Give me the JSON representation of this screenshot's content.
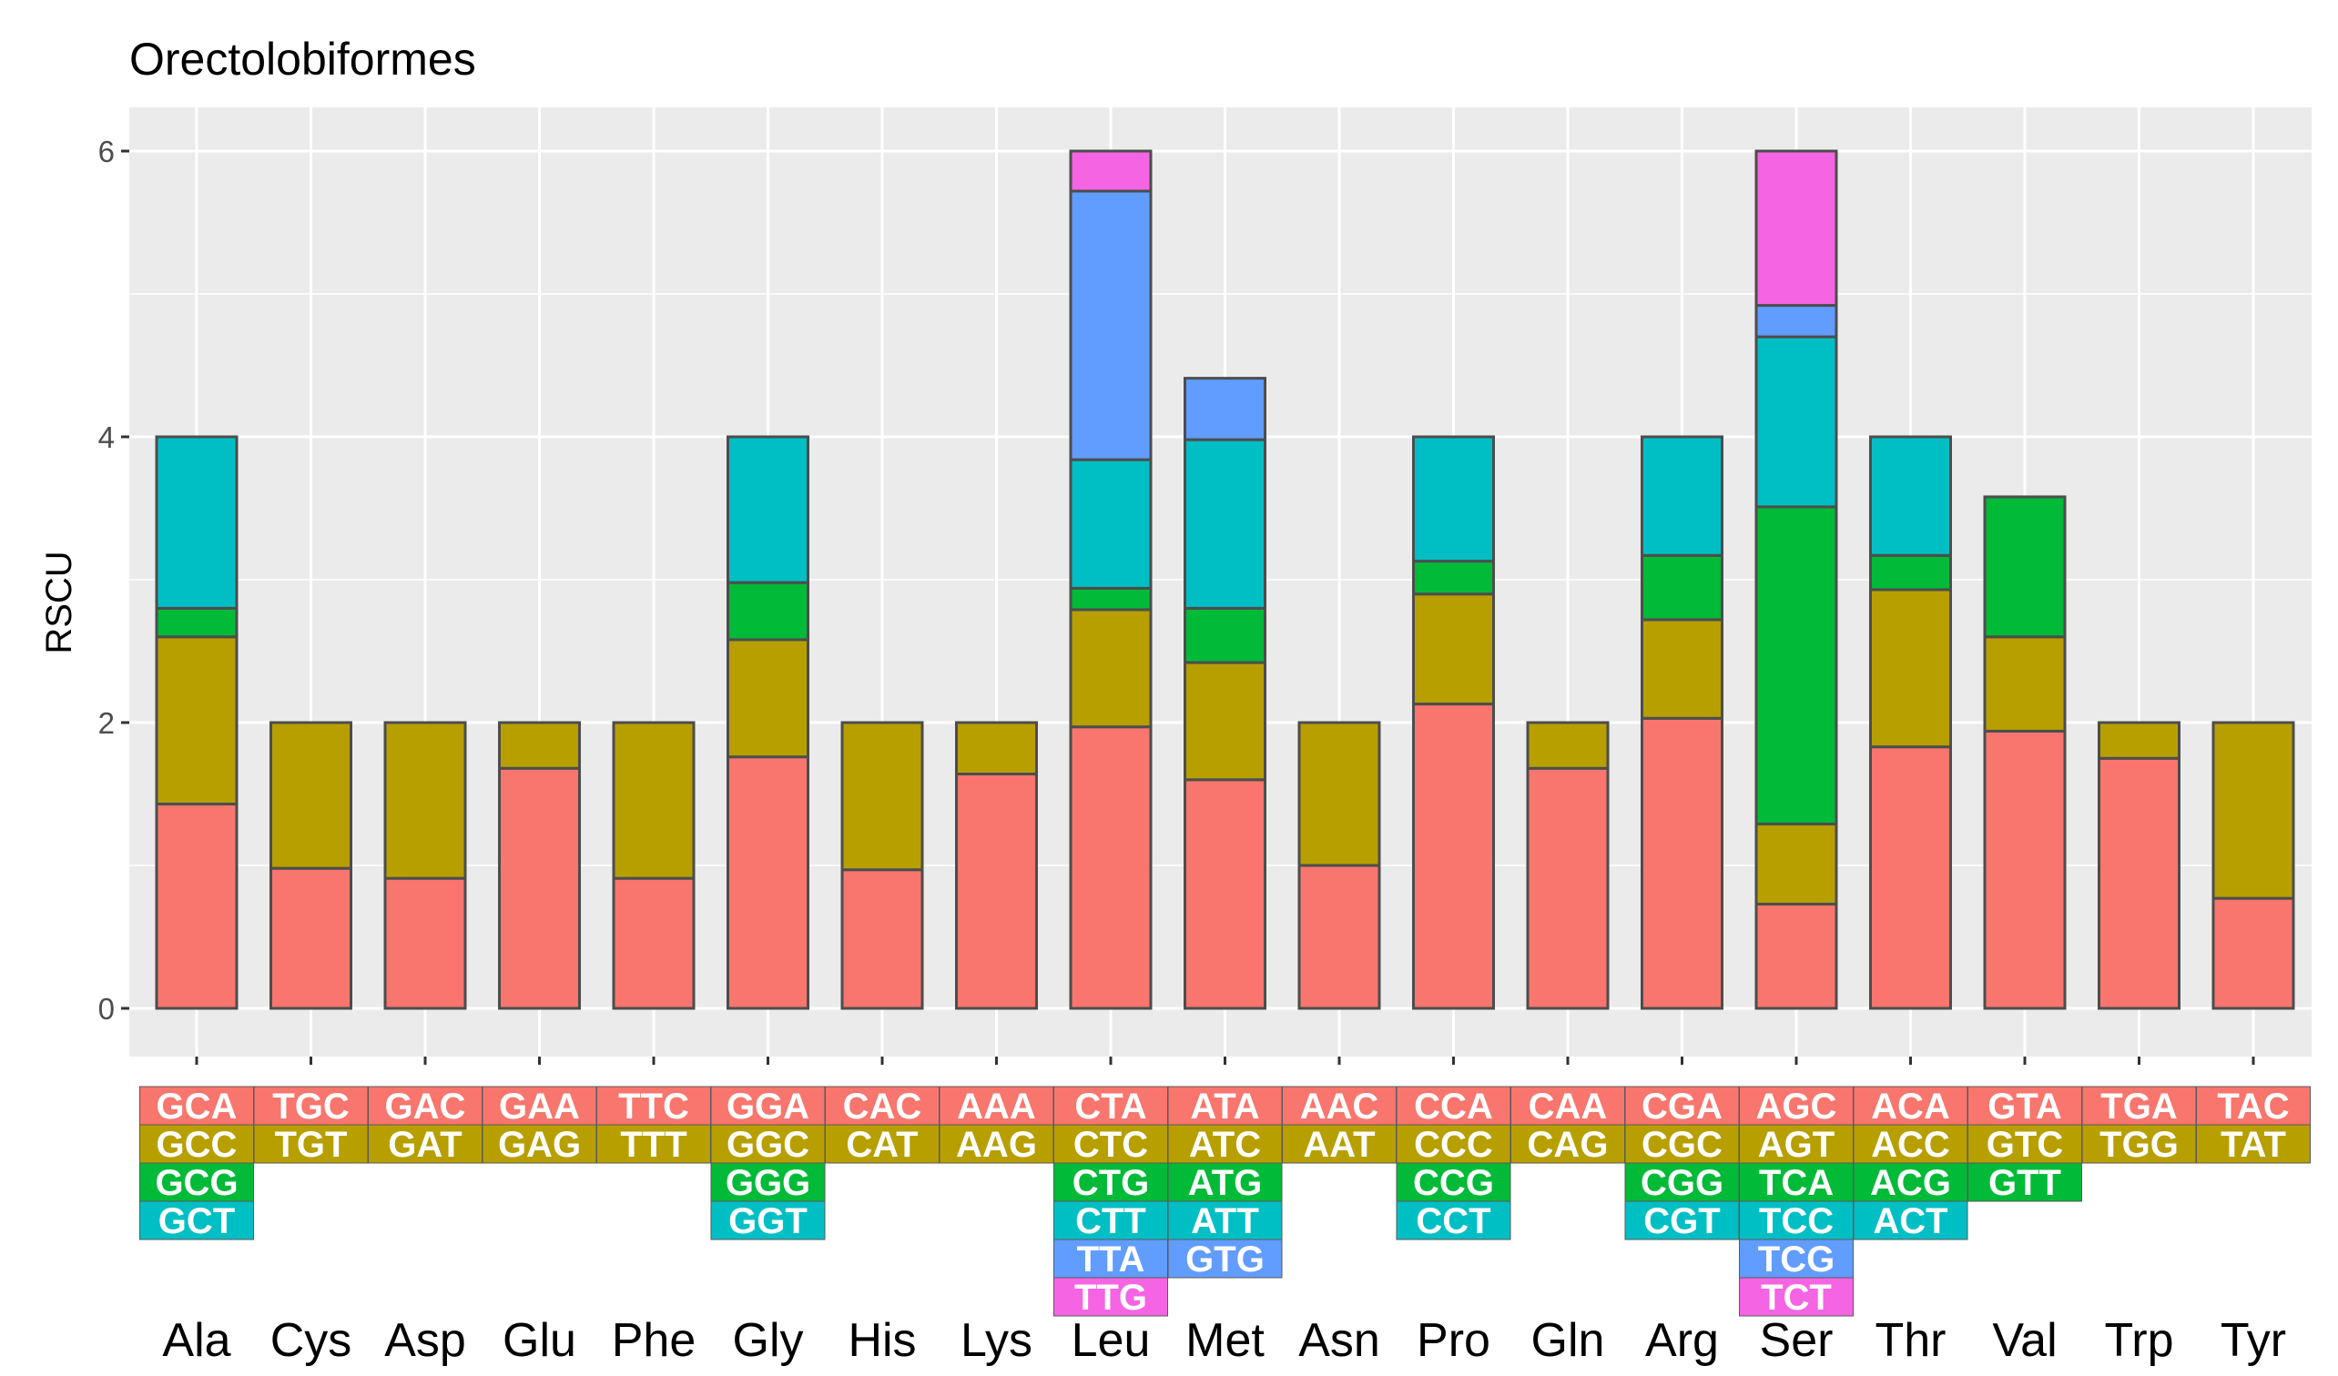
{
  "chart_data": {
    "type": "bar",
    "stacked": true,
    "title": "Orectolobiformes",
    "ylabel": "RSCU",
    "xlabel": "",
    "ylim": [
      0,
      6
    ],
    "yticks": [
      0,
      2,
      4,
      6
    ],
    "grid": true,
    "legend": "none",
    "categories": [
      "Ala",
      "Cys",
      "Asp",
      "Glu",
      "Phe",
      "Gly",
      "His",
      "Lys",
      "Leu",
      "Met",
      "Asn",
      "Pro",
      "Gln",
      "Arg",
      "Ser",
      "Thr",
      "Val",
      "Trp",
      "Tyr"
    ],
    "stack_colors": [
      "#F8766D",
      "#B79F00",
      "#00BA38",
      "#00BFC4",
      "#619CFF",
      "#F564E3"
    ],
    "codons": [
      [
        "GCA",
        "GCC",
        "GCG",
        "GCT"
      ],
      [
        "TGC",
        "TGT"
      ],
      [
        "GAC",
        "GAT"
      ],
      [
        "GAA",
        "GAG"
      ],
      [
        "TTC",
        "TTT"
      ],
      [
        "GGA",
        "GGC",
        "GGG",
        "GGT"
      ],
      [
        "CAC",
        "CAT"
      ],
      [
        "AAA",
        "AAG"
      ],
      [
        "CTA",
        "CTC",
        "CTG",
        "CTT",
        "TTA",
        "TTG"
      ],
      [
        "ATA",
        "ATC",
        "ATG",
        "ATT",
        "GTG"
      ],
      [
        "AAC",
        "AAT"
      ],
      [
        "CCA",
        "CCC",
        "CCG",
        "CCT"
      ],
      [
        "CAA",
        "CAG"
      ],
      [
        "CGA",
        "CGC",
        "CGG",
        "CGT"
      ],
      [
        "AGC",
        "AGT",
        "TCA",
        "TCC",
        "TCG",
        "TCT"
      ],
      [
        "ACA",
        "ACC",
        "ACG",
        "ACT"
      ],
      [
        "GTA",
        "GTC",
        "GTT"
      ],
      [
        "TGA",
        "TGG"
      ],
      [
        "TAC",
        "TAT"
      ]
    ],
    "rscu": [
      [
        1.43,
        1.17,
        0.2,
        1.2
      ],
      [
        0.98,
        1.02
      ],
      [
        0.91,
        1.09
      ],
      [
        1.68,
        0.32
      ],
      [
        0.91,
        1.09
      ],
      [
        1.76,
        0.82,
        0.4,
        1.02
      ],
      [
        0.97,
        1.03
      ],
      [
        1.64,
        0.36
      ],
      [
        1.97,
        0.82,
        0.15,
        0.9,
        1.88,
        0.28
      ],
      [
        1.6,
        0.82,
        0.38,
        1.18,
        0.43
      ],
      [
        1.0,
        1.0
      ],
      [
        2.13,
        0.77,
        0.23,
        0.87
      ],
      [
        1.68,
        0.32
      ],
      [
        2.03,
        0.69,
        0.45,
        0.83
      ],
      [
        0.73,
        0.56,
        2.22,
        1.19,
        0.22,
        1.08
      ],
      [
        1.83,
        1.1,
        0.24,
        0.83
      ],
      [
        1.94,
        0.66,
        0.98
      ],
      [
        1.75,
        0.25
      ],
      [
        0.77,
        1.23
      ]
    ]
  }
}
